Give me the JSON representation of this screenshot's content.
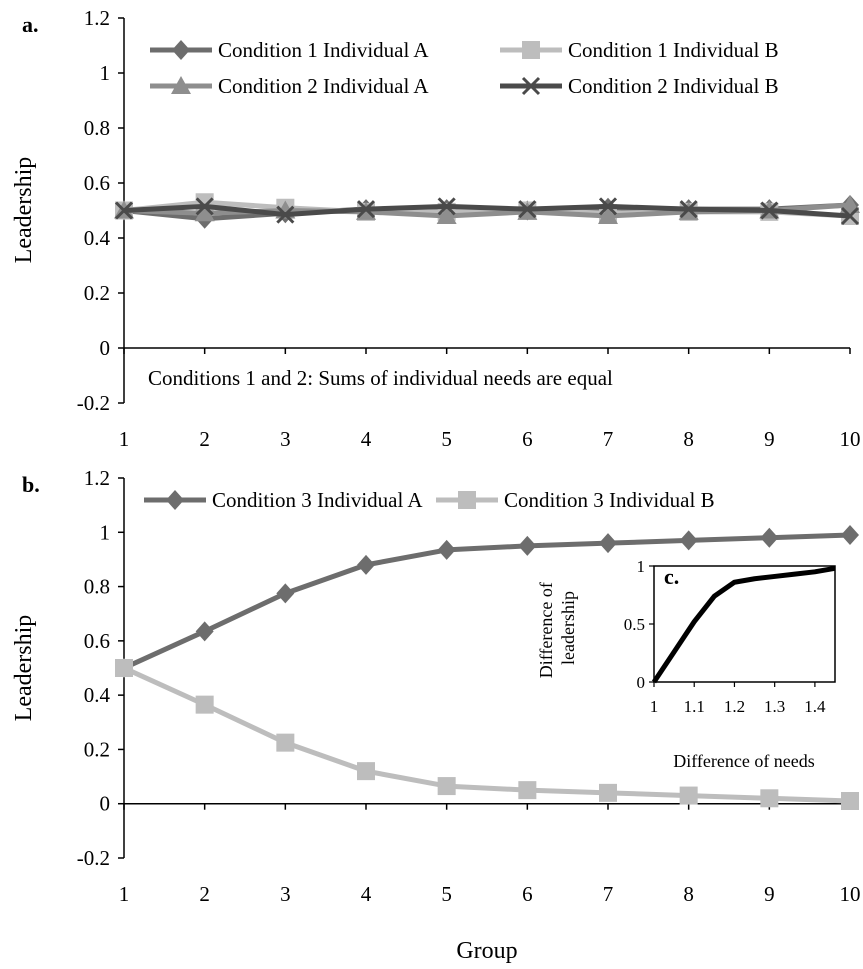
{
  "xlabel": "Group",
  "chart_data": [
    {
      "type": "line",
      "panel_label": "a.",
      "ylabel": "Leadership",
      "x": [
        1,
        2,
        3,
        4,
        5,
        6,
        7,
        8,
        9,
        10
      ],
      "xticks": [
        "1",
        "2",
        "3",
        "4",
        "5",
        "6",
        "7",
        "8",
        "9",
        "10"
      ],
      "ylim": [
        -0.2,
        1.2
      ],
      "yticks": [
        "-0.2",
        "0",
        "0.2",
        "0.4",
        "0.6",
        "0.8",
        "1",
        "1.2"
      ],
      "annotation": "Conditions 1 and 2: Sums of individual needs are equal",
      "legend_placement": "top",
      "series": [
        {
          "name": "Condition 1 Individual A",
          "marker": "diamond",
          "color": "#6d6d6d",
          "values": [
            0.5,
            0.47,
            0.49,
            0.505,
            0.505,
            0.5,
            0.51,
            0.505,
            0.505,
            0.52
          ]
        },
        {
          "name": "Condition 1 Individual B",
          "marker": "square",
          "color": "#bdbdbd",
          "values": [
            0.5,
            0.53,
            0.51,
            0.495,
            0.495,
            0.5,
            0.49,
            0.495,
            0.495,
            0.48
          ]
        },
        {
          "name": "Condition 2 Individual A",
          "marker": "triangle",
          "color": "#8e8e8e",
          "values": [
            0.5,
            0.49,
            0.5,
            0.495,
            0.48,
            0.495,
            0.48,
            0.495,
            0.5,
            0.52
          ]
        },
        {
          "name": "Condition 2 Individual B",
          "marker": "x",
          "color": "#4a4a4a",
          "values": [
            0.5,
            0.515,
            0.485,
            0.505,
            0.515,
            0.505,
            0.515,
            0.505,
            0.5,
            0.48
          ]
        }
      ]
    },
    {
      "type": "line",
      "panel_label": "b.",
      "ylabel": "Leadership",
      "x": [
        1,
        2,
        3,
        4,
        5,
        6,
        7,
        8,
        9,
        10
      ],
      "xticks": [
        "1",
        "2",
        "3",
        "4",
        "5",
        "6",
        "7",
        "8",
        "9",
        "10"
      ],
      "ylim": [
        -0.2,
        1.2
      ],
      "yticks": [
        "-0.2",
        "0",
        "0.2",
        "0.4",
        "0.6",
        "0.8",
        "1",
        "1.2"
      ],
      "legend_placement": "top",
      "series": [
        {
          "name": "Condition 3 Individual A",
          "marker": "diamond",
          "color": "#6d6d6d",
          "values": [
            0.5,
            0.635,
            0.775,
            0.88,
            0.935,
            0.95,
            0.96,
            0.97,
            0.98,
            0.99
          ]
        },
        {
          "name": "Condition 3 Individual B",
          "marker": "square",
          "color": "#bdbdbd",
          "values": [
            0.5,
            0.365,
            0.225,
            0.12,
            0.065,
            0.05,
            0.04,
            0.03,
            0.02,
            0.01
          ]
        }
      ]
    },
    {
      "type": "line",
      "panel_label": "c.",
      "xlabel": "Difference of needs",
      "ylabel": "Difference of leadership",
      "xlim": [
        1,
        1.45
      ],
      "ylim": [
        0,
        1
      ],
      "xticks": [
        "1",
        "1.1",
        "1.2",
        "1.3",
        "1.4"
      ],
      "yticks": [
        "0",
        "0.5",
        "1"
      ],
      "series": [
        {
          "color": "#000000",
          "points": [
            [
              1.0,
              0.0
            ],
            [
              1.05,
              0.26
            ],
            [
              1.1,
              0.52
            ],
            [
              1.15,
              0.74
            ],
            [
              1.2,
              0.86
            ],
            [
              1.25,
              0.89
            ],
            [
              1.3,
              0.91
            ],
            [
              1.35,
              0.93
            ],
            [
              1.4,
              0.95
            ],
            [
              1.45,
              0.98
            ]
          ]
        }
      ]
    }
  ]
}
